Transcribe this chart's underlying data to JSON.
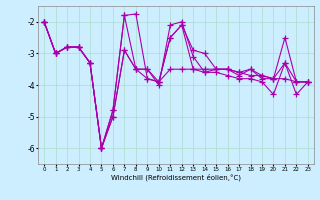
{
  "x": [
    0,
    1,
    2,
    3,
    4,
    5,
    6,
    7,
    8,
    9,
    10,
    11,
    12,
    13,
    14,
    15,
    16,
    17,
    18,
    19,
    20,
    21,
    22,
    23
  ],
  "line1": [
    -2.0,
    -3.0,
    -2.8,
    -2.8,
    -3.3,
    -6.0,
    -4.8,
    -1.8,
    -1.75,
    -3.8,
    -3.9,
    -2.5,
    -2.1,
    -2.9,
    -3.0,
    -3.5,
    -3.5,
    -3.6,
    -3.5,
    -3.7,
    -3.8,
    -3.3,
    -3.9,
    -3.9
  ],
  "line2": [
    -2.0,
    -3.0,
    -2.8,
    -2.8,
    -3.3,
    -6.0,
    -4.8,
    -1.8,
    -3.5,
    -3.5,
    -3.9,
    -3.5,
    -3.5,
    -3.5,
    -3.5,
    -3.5,
    -3.5,
    -3.6,
    -3.7,
    -3.7,
    -3.8,
    -3.8,
    -3.9,
    -3.9
  ],
  "line3": [
    -2.0,
    -3.0,
    -2.8,
    -2.8,
    -3.3,
    -6.0,
    -5.0,
    -2.9,
    -3.5,
    -3.5,
    -4.0,
    -2.1,
    -2.0,
    -3.1,
    -3.6,
    -3.5,
    -3.5,
    -3.7,
    -3.5,
    -3.8,
    -3.8,
    -2.5,
    -3.9,
    -3.9
  ],
  "line4": [
    -2.0,
    -3.0,
    -2.8,
    -2.8,
    -3.3,
    -6.0,
    -5.0,
    -2.9,
    -3.5,
    -3.8,
    -3.9,
    -2.5,
    -2.1,
    -3.5,
    -3.6,
    -3.6,
    -3.7,
    -3.8,
    -3.8,
    -3.9,
    -4.3,
    -3.3,
    -4.3,
    -3.9
  ],
  "line_color": "#aa00aa",
  "bg_color": "#cceeff",
  "grid_color": "#aaddcc",
  "xlabel": "Windchill (Refroidissement éolien,°C)",
  "ylim": [
    -6.5,
    -1.5
  ],
  "xlim": [
    -0.5,
    23.5
  ],
  "yticks": [
    -6,
    -5,
    -4,
    -3,
    -2
  ],
  "xticks": [
    0,
    1,
    2,
    3,
    4,
    5,
    6,
    7,
    8,
    9,
    10,
    11,
    12,
    13,
    14,
    15,
    16,
    17,
    18,
    19,
    20,
    21,
    22,
    23
  ]
}
